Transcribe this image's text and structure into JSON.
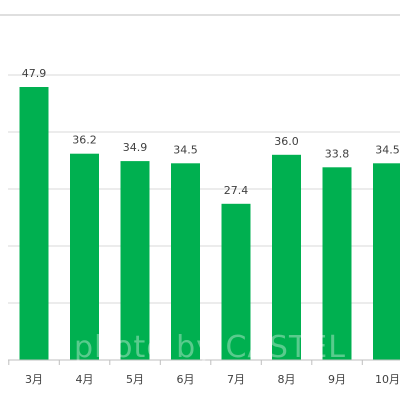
{
  "chart_data": {
    "type": "bar",
    "categories": [
      "3月",
      "4月",
      "5月",
      "6月",
      "7月",
      "8月",
      "9月",
      "10月"
    ],
    "values": [
      47.9,
      36.2,
      34.9,
      34.5,
      27.4,
      36.0,
      33.8,
      34.5
    ],
    "value_labels": [
      "47.9",
      "36.2",
      "34.9",
      "34.5",
      "27.4",
      "36.0",
      "33.8",
      "34.5"
    ],
    "title": "",
    "xlabel": "",
    "ylabel": "",
    "ylim": [
      0,
      60
    ],
    "grid": true,
    "legend": "none",
    "bar_color": "#00b050",
    "gridline_color": "#d9d9d9",
    "axis_color": "#bfbfbf"
  },
  "watermark": {
    "text": "photo by CASTEL"
  }
}
